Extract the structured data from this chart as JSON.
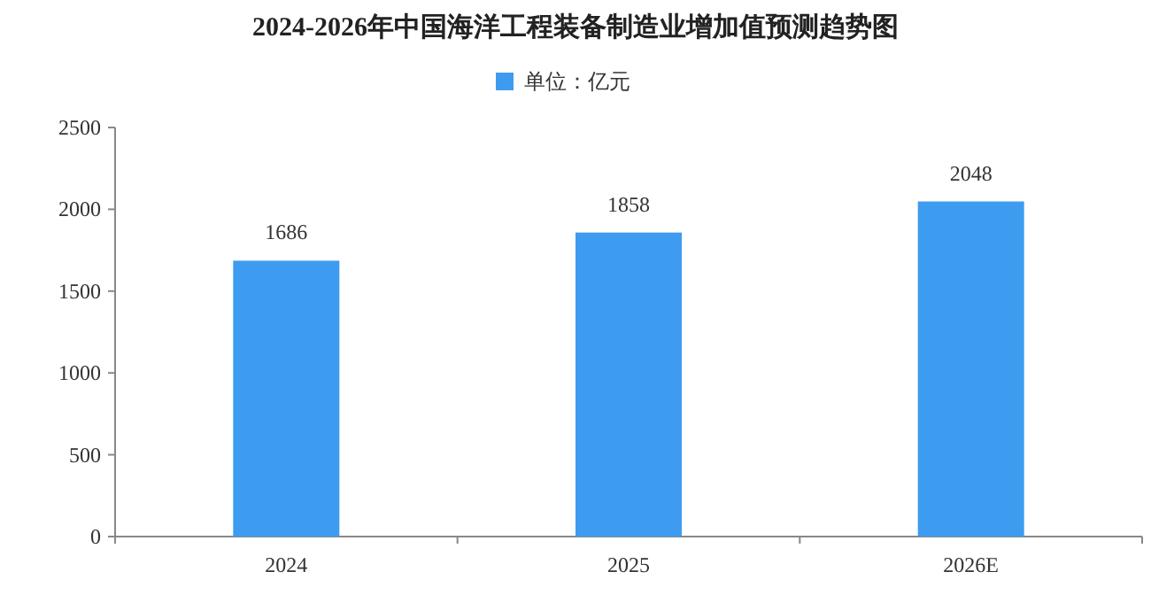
{
  "chart_data": {
    "type": "bar",
    "title": "2024-2026年中国海洋工程装备制造业增加值预测趋势图",
    "categories": [
      "2024",
      "2025",
      "2026E"
    ],
    "series": [
      {
        "name": "单位：亿元",
        "color": "#3d9cf0",
        "values": [
          1686,
          1858,
          2048
        ]
      }
    ],
    "ylim": [
      0,
      2500
    ],
    "yticks": [
      0,
      500,
      1000,
      1500,
      2000,
      2500
    ],
    "data_labels": true,
    "legend": "top",
    "grid": false
  }
}
